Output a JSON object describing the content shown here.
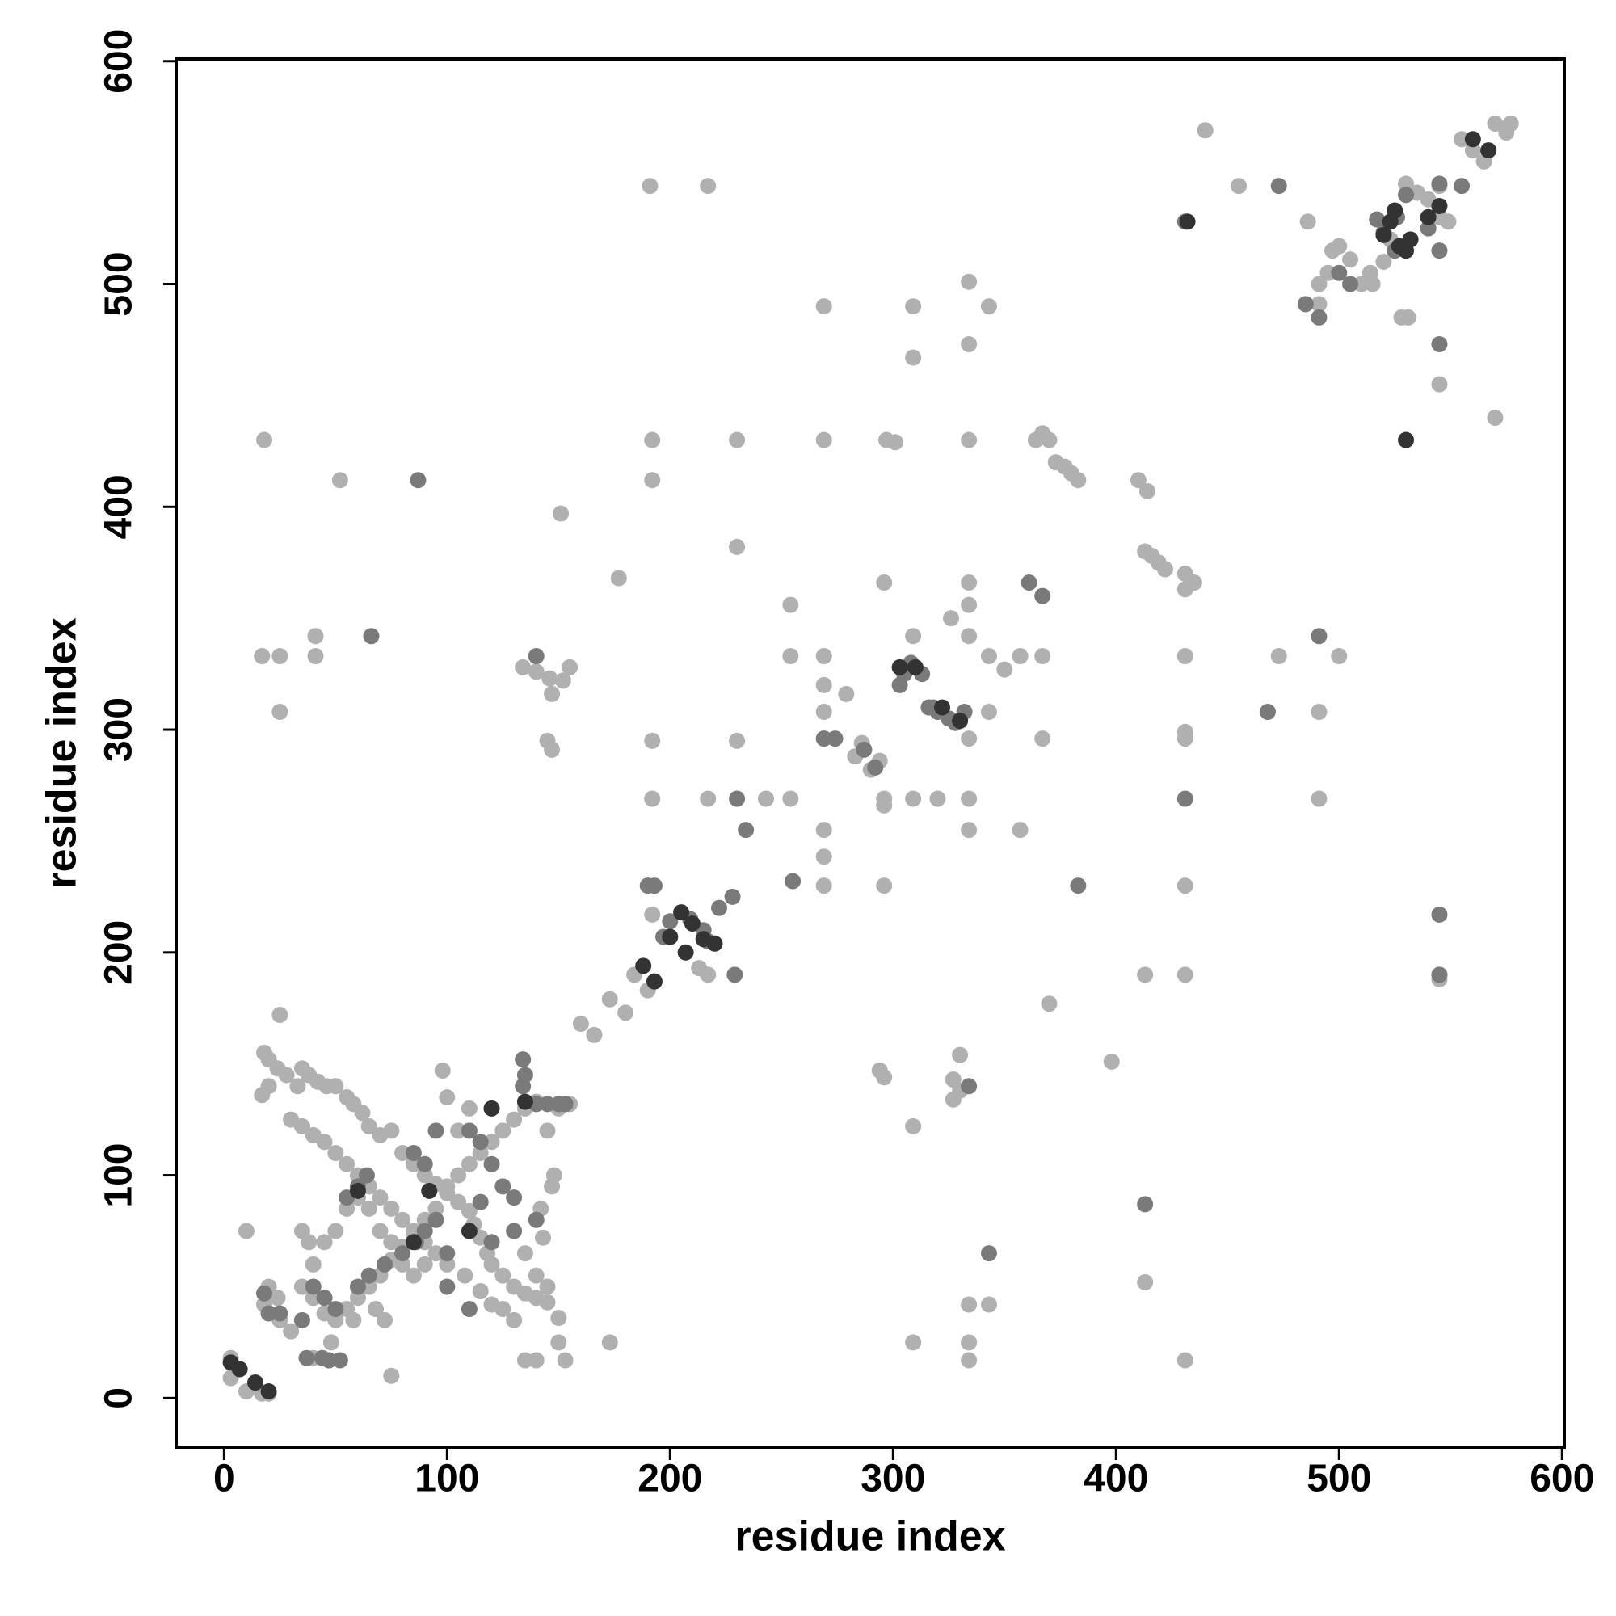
{
  "chart_data": {
    "type": "scatter",
    "xlabel": "residue index",
    "ylabel": "residue index",
    "xlim": [
      -21.5,
      601
    ],
    "ylim": [
      -22,
      601
    ],
    "xticks": [
      0,
      100,
      200,
      300,
      400,
      500,
      600
    ],
    "yticks": [
      0,
      100,
      200,
      300,
      400,
      500,
      600
    ],
    "series": [
      {
        "color": "#b0b0b0",
        "x": [
          18,
          52,
          17,
          25,
          41,
          41,
          25,
          151,
          177,
          134,
          140,
          146,
          152,
          155,
          147,
          145,
          147,
          191,
          217,
          192,
          192,
          230,
          230,
          269,
          269,
          297,
          301,
          309,
          296,
          254,
          254,
          269,
          269,
          279,
          269,
          269,
          230,
          192,
          192,
          217,
          243,
          254,
          269,
          269,
          269,
          296,
          286,
          283,
          290,
          294,
          296,
          296,
          309,
          320,
          334,
          334,
          357,
          309,
          326,
          334,
          334,
          334,
          334,
          334,
          334,
          309,
          343,
          343,
          350,
          343,
          334,
          367,
          367,
          357,
          364,
          367,
          370,
          373,
          377,
          380,
          383,
          410,
          414,
          413,
          416,
          419,
          422,
          431,
          431,
          435,
          431,
          431,
          431,
          431,
          431,
          431,
          413,
          413,
          398,
          370,
          334,
          343,
          334,
          334,
          309,
          309,
          294,
          296,
          327,
          330,
          327,
          330,
          217,
          213,
          217,
          192,
          190,
          184,
          180,
          173,
          166,
          160,
          173,
          150,
          153,
          140,
          135,
          545,
          455,
          440,
          486,
          491,
          495,
          497,
          500,
          505,
          510,
          515,
          514,
          528,
          531,
          520,
          523,
          530,
          535,
          540,
          545,
          549,
          555,
          560,
          565,
          570,
          575,
          577,
          570,
          545,
          545,
          545,
          500,
          491,
          491,
          473,
          491,
          18,
          20,
          24,
          20,
          17,
          35,
          38,
          42,
          46,
          50,
          55,
          58,
          62,
          65,
          70,
          75,
          80,
          85,
          90,
          95,
          100,
          105,
          110,
          112,
          115,
          118,
          120,
          125,
          130,
          135,
          140,
          145,
          150,
          125,
          130,
          120,
          115,
          108,
          100,
          95,
          90,
          85,
          80,
          75,
          70,
          65,
          60,
          55,
          50,
          45,
          40,
          35,
          30,
          35,
          38,
          40,
          35,
          40,
          45,
          50,
          55,
          60,
          65,
          70,
          75,
          80,
          85,
          90,
          95,
          100,
          105,
          110,
          115,
          120,
          125,
          130,
          135,
          140,
          145,
          98,
          100,
          110,
          105,
          45,
          50,
          55,
          60,
          65,
          70,
          75,
          80,
          85,
          90,
          72,
          68,
          58,
          48,
          40,
          30,
          25,
          18,
          10,
          75,
          25,
          3,
          10,
          17,
          20,
          3,
          150,
          155,
          148,
          147,
          142,
          143,
          135,
          140,
          145,
          28,
          33,
          20,
          24
        ],
        "y": [
          430,
          412,
          333,
          333,
          342,
          333,
          308,
          397,
          368,
          328,
          326,
          323,
          322,
          328,
          316,
          295,
          291,
          544,
          544,
          430,
          412,
          430,
          382,
          430,
          490,
          430,
          429,
          490,
          366,
          356,
          333,
          333,
          320,
          316,
          308,
          296,
          295,
          295,
          269,
          269,
          269,
          269,
          255,
          243,
          230,
          230,
          294,
          288,
          282,
          286,
          269,
          266,
          269,
          269,
          269,
          255,
          255,
          342,
          350,
          342,
          356,
          366,
          430,
          473,
          501,
          467,
          490,
          333,
          327,
          308,
          296,
          296,
          333,
          333,
          430,
          433,
          430,
          420,
          418,
          415,
          412,
          412,
          407,
          380,
          378,
          375,
          372,
          370,
          363,
          366,
          333,
          299,
          296,
          230,
          190,
          17,
          190,
          52,
          151,
          177,
          42,
          42,
          25,
          17,
          25,
          122,
          147,
          144,
          143,
          138,
          134,
          154,
          190,
          193,
          205,
          217,
          183,
          190,
          173,
          179,
          163,
          168,
          25,
          25,
          17,
          17,
          17,
          544,
          544,
          569,
          528,
          500,
          505,
          515,
          517,
          511,
          500,
          500,
          505,
          485,
          485,
          510,
          520,
          545,
          541,
          538,
          530,
          528,
          565,
          560,
          555,
          572,
          568,
          572,
          440,
          455,
          190,
          188,
          333,
          308,
          269,
          333,
          491,
          155,
          152,
          148,
          140,
          136,
          148,
          145,
          142,
          140,
          140,
          135,
          132,
          128,
          122,
          118,
          120,
          110,
          105,
          100,
          96,
          92,
          88,
          84,
          78,
          72,
          65,
          60,
          55,
          50,
          47,
          45,
          43,
          36,
          40,
          35,
          42,
          48,
          55,
          60,
          65,
          70,
          75,
          80,
          85,
          90,
          95,
          100,
          105,
          110,
          115,
          118,
          122,
          125,
          75,
          70,
          60,
          50,
          45,
          38,
          35,
          40,
          45,
          50,
          55,
          62,
          68,
          72,
          80,
          85,
          95,
          100,
          105,
          110,
          115,
          120,
          125,
          130,
          133,
          120,
          147,
          135,
          130,
          120,
          70,
          75,
          85,
          90,
          85,
          75,
          70,
          60,
          55,
          60,
          35,
          40,
          35,
          25,
          18,
          30,
          35,
          42,
          75,
          10,
          172,
          9,
          3,
          2,
          2,
          18,
          130,
          132,
          100,
          95,
          85,
          72,
          65,
          55,
          50,
          145,
          140,
          50,
          45
        ]
      },
      {
        "color": "#7a7a7a",
        "x": [
          66,
          87,
          140,
          230,
          229,
          255,
          269,
          274,
          287,
          292,
          303,
          305,
          308,
          313,
          316,
          318,
          320,
          325,
          328,
          332,
          334,
          343,
          383,
          367,
          361,
          413,
          431,
          431,
          473,
          468,
          491,
          485,
          491,
          500,
          505,
          517,
          520,
          526,
          530,
          525,
          540,
          545,
          555,
          545,
          545,
          545,
          545,
          18,
          20,
          37,
          44,
          47,
          52,
          60,
          65,
          72,
          80,
          86,
          90,
          95,
          100,
          85,
          90,
          95,
          110,
          115,
          120,
          125,
          130,
          115,
          135,
          134,
          134,
          140,
          145,
          150,
          153,
          140,
          130,
          55,
          60,
          64,
          40,
          45,
          50,
          35,
          25,
          120,
          110,
          100,
          190,
          193,
          197,
          200,
          209,
          215,
          217,
          222,
          228,
          234
        ],
        "y": [
          342,
          412,
          333,
          269,
          190,
          232,
          296,
          296,
          291,
          283,
          320,
          325,
          330,
          325,
          310,
          310,
          308,
          305,
          303,
          308,
          140,
          65,
          230,
          360,
          366,
          87,
          269,
          528,
          544,
          308,
          342,
          491,
          485,
          505,
          500,
          529,
          523,
          530,
          540,
          515,
          525,
          545,
          544,
          515,
          473,
          217,
          190,
          47,
          38,
          18,
          18,
          17,
          17,
          50,
          55,
          60,
          65,
          70,
          75,
          80,
          65,
          110,
          105,
          120,
          120,
          115,
          105,
          95,
          90,
          88,
          145,
          152,
          140,
          132,
          132,
          132,
          132,
          80,
          75,
          90,
          95,
          100,
          50,
          45,
          40,
          35,
          38,
          70,
          40,
          50,
          230,
          230,
          207,
          214,
          215,
          210,
          205,
          220,
          225,
          255
        ]
      },
      {
        "color": "#333333",
        "x": [
          7,
          14,
          20,
          3,
          188,
          193,
          200,
          207,
          205,
          210,
          215,
          220,
          330,
          322,
          310,
          303,
          520,
          523,
          527,
          530,
          525,
          532,
          540,
          545,
          560,
          567,
          432,
          530,
          60,
          85,
          110,
          120,
          135,
          92
        ],
        "y": [
          13,
          7,
          3,
          16,
          194,
          187,
          207,
          200,
          218,
          213,
          206,
          204,
          304,
          310,
          328,
          328,
          522,
          528,
          517,
          515,
          533,
          520,
          530,
          535,
          565,
          560,
          528,
          430,
          93,
          70,
          75,
          130,
          133,
          93
        ]
      }
    ]
  }
}
